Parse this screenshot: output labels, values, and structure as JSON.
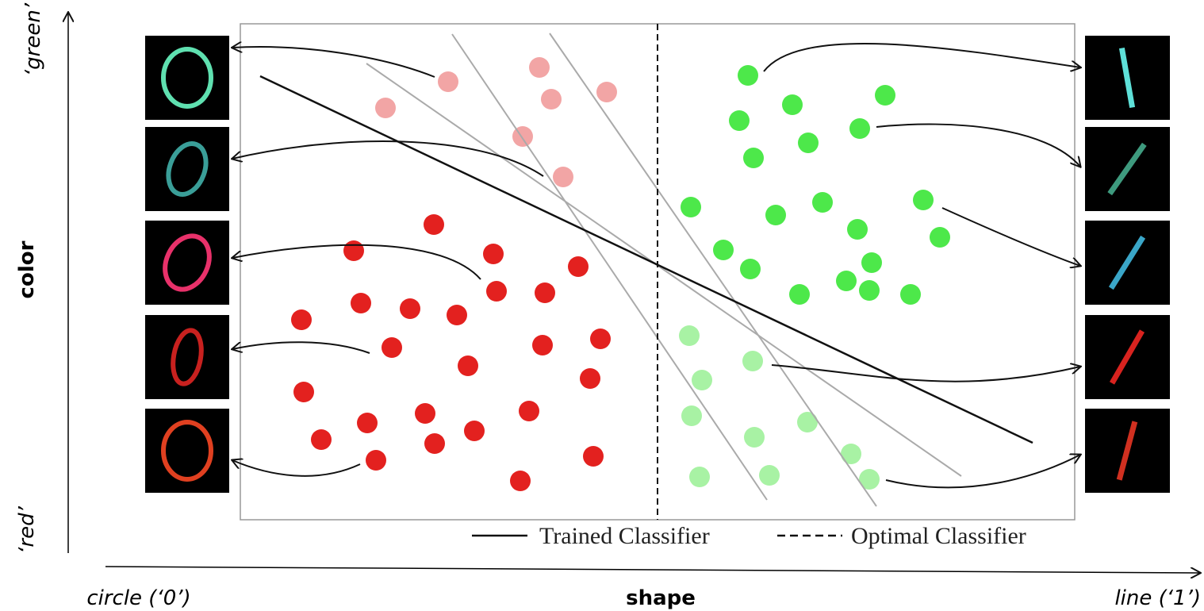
{
  "axes": {
    "y_top": "‘green’",
    "y_title": "color",
    "y_bottom": "‘red’",
    "x_left": "circle (‘0’)",
    "x_title": "shape",
    "x_right": "line (‘1’)"
  },
  "legend": {
    "trained": "Trained Classifier",
    "optimal": "Optimal Classifier"
  }
}
